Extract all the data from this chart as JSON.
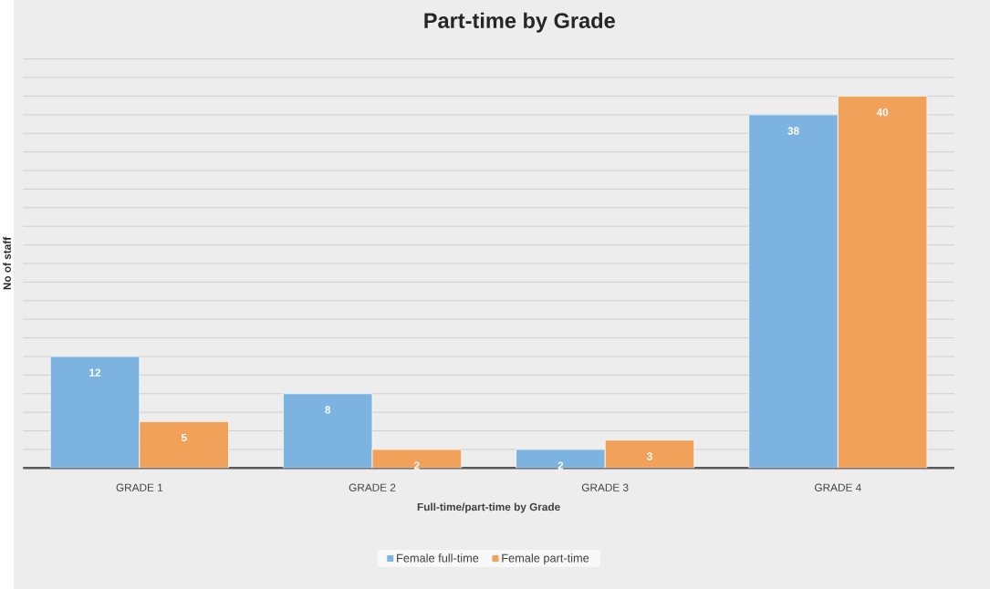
{
  "chart_data": {
    "type": "bar",
    "title": "Part-time by Grade",
    "xlabel": "Full-time/part-time by Grade",
    "ylabel": "No of staff",
    "categories": [
      "GRADE 1",
      "GRADE 2",
      "GRADE 3",
      "GRADE 4"
    ],
    "series": [
      {
        "name": "Female full-time",
        "color": "#7cb3e0",
        "values": [
          12,
          8,
          2,
          38
        ]
      },
      {
        "name": "Female part-time",
        "color": "#f2a15a",
        "values": [
          5,
          2,
          3,
          40
        ]
      }
    ],
    "tick_labels": "x",
    "grid": "y",
    "legend": "bottom",
    "data_labels": true
  }
}
